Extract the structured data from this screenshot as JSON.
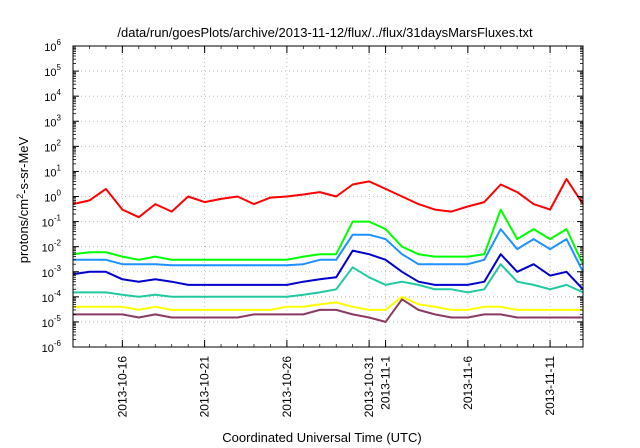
{
  "chart_data": {
    "type": "line",
    "title": "/data/run/goesPlots/archive/2013-11-12/flux/../flux/31daysMarsFluxes.txt",
    "xlabel": "Coordinated Universal Time (UTC)",
    "ylabel_base": "protons/cm",
    "ylabel_sup": "2",
    "ylabel_rest": "-s-sr-MeV",
    "yscale": "log",
    "ylim": [
      1e-06,
      1000000.0
    ],
    "y_ticks": [
      {
        "base": "10",
        "exp": "-6",
        "value": 1e-06
      },
      {
        "base": "10",
        "exp": "-5",
        "value": 1e-05
      },
      {
        "base": "10",
        "exp": "-4",
        "value": 0.0001
      },
      {
        "base": "10",
        "exp": "-3",
        "value": 0.001
      },
      {
        "base": "10",
        "exp": "-2",
        "value": 0.01
      },
      {
        "base": "10",
        "exp": "-1",
        "value": 0.1
      },
      {
        "base": "10",
        "exp": "0",
        "value": 1
      },
      {
        "base": "10",
        "exp": "1",
        "value": 10
      },
      {
        "base": "10",
        "exp": "2",
        "value": 100
      },
      {
        "base": "10",
        "exp": "3",
        "value": 1000
      },
      {
        "base": "10",
        "exp": "4",
        "value": 10000
      },
      {
        "base": "10",
        "exp": "5",
        "value": 100000
      },
      {
        "base": "10",
        "exp": "6",
        "value": 1000000
      }
    ],
    "xlim": [
      "2013-10-13",
      "2013-11-13"
    ],
    "x_ticks": [
      {
        "label": "2013-10-16",
        "date": "2013-10-16"
      },
      {
        "label": "2013-10-21",
        "date": "2013-10-21"
      },
      {
        "label": "2013-10-26",
        "date": "2013-10-26"
      },
      {
        "label": "2013-10-31",
        "date": "2013-10-31"
      },
      {
        "label": "2013-11-1",
        "date": "2013-11-01"
      },
      {
        "label": "2013-11-6",
        "date": "2013-11-06"
      },
      {
        "label": "2013-11-11",
        "date": "2013-11-11"
      }
    ],
    "grid": true,
    "legend": "none",
    "series": [
      {
        "color": "#ff0000",
        "x": [
          "2013-10-13",
          "2013-10-14",
          "2013-10-15",
          "2013-10-16",
          "2013-10-17",
          "2013-10-18",
          "2013-10-19",
          "2013-10-20",
          "2013-10-21",
          "2013-10-22",
          "2013-10-23",
          "2013-10-24",
          "2013-10-25",
          "2013-10-26",
          "2013-10-27",
          "2013-10-28",
          "2013-10-29",
          "2013-10-30",
          "2013-10-31",
          "2013-11-01",
          "2013-11-02",
          "2013-11-03",
          "2013-11-04",
          "2013-11-05",
          "2013-11-06",
          "2013-11-07",
          "2013-11-08",
          "2013-11-09",
          "2013-11-10",
          "2013-11-11",
          "2013-11-12",
          "2013-11-13"
        ],
        "y": [
          0.5,
          0.7,
          2,
          0.3,
          0.15,
          0.5,
          0.25,
          1,
          0.6,
          0.8,
          1,
          0.5,
          0.9,
          1,
          1.2,
          1.5,
          1,
          3,
          4,
          2,
          1,
          0.5,
          0.3,
          0.25,
          0.4,
          0.6,
          3,
          1.5,
          0.5,
          0.3,
          5,
          0.5
        ]
      },
      {
        "color": "#00ff00",
        "x": [
          "2013-10-13",
          "2013-10-14",
          "2013-10-15",
          "2013-10-16",
          "2013-10-17",
          "2013-10-18",
          "2013-10-19",
          "2013-10-20",
          "2013-10-21",
          "2013-10-22",
          "2013-10-23",
          "2013-10-24",
          "2013-10-25",
          "2013-10-26",
          "2013-10-27",
          "2013-10-28",
          "2013-10-29",
          "2013-10-30",
          "2013-10-31",
          "2013-11-01",
          "2013-11-02",
          "2013-11-03",
          "2013-11-04",
          "2013-11-05",
          "2013-11-06",
          "2013-11-07",
          "2013-11-08",
          "2013-11-09",
          "2013-11-10",
          "2013-11-11",
          "2013-11-12",
          "2013-11-13"
        ],
        "y": [
          0.005,
          0.006,
          0.006,
          0.004,
          0.003,
          0.004,
          0.003,
          0.003,
          0.003,
          0.003,
          0.003,
          0.003,
          0.003,
          0.003,
          0.004,
          0.005,
          0.005,
          0.1,
          0.1,
          0.05,
          0.01,
          0.005,
          0.004,
          0.004,
          0.004,
          0.005,
          0.3,
          0.02,
          0.05,
          0.02,
          0.05,
          0.002
        ]
      },
      {
        "color": "#1e90ff",
        "x": [
          "2013-10-13",
          "2013-10-14",
          "2013-10-15",
          "2013-10-16",
          "2013-10-17",
          "2013-10-18",
          "2013-10-19",
          "2013-10-20",
          "2013-10-21",
          "2013-10-22",
          "2013-10-23",
          "2013-10-24",
          "2013-10-25",
          "2013-10-26",
          "2013-10-27",
          "2013-10-28",
          "2013-10-29",
          "2013-10-30",
          "2013-10-31",
          "2013-11-01",
          "2013-11-02",
          "2013-11-03",
          "2013-11-04",
          "2013-11-05",
          "2013-11-06",
          "2013-11-07",
          "2013-11-08",
          "2013-11-09",
          "2013-11-10",
          "2013-11-11",
          "2013-11-12",
          "2013-11-13"
        ],
        "y": [
          0.003,
          0.003,
          0.003,
          0.002,
          0.002,
          0.002,
          0.0018,
          0.0018,
          0.0018,
          0.0018,
          0.0018,
          0.0018,
          0.0018,
          0.0018,
          0.002,
          0.003,
          0.003,
          0.03,
          0.03,
          0.02,
          0.005,
          0.002,
          0.002,
          0.002,
          0.002,
          0.003,
          0.05,
          0.008,
          0.02,
          0.008,
          0.02,
          0.001
        ]
      },
      {
        "color": "#0000cd",
        "x": [
          "2013-10-13",
          "2013-10-14",
          "2013-10-15",
          "2013-10-16",
          "2013-10-17",
          "2013-10-18",
          "2013-10-19",
          "2013-10-20",
          "2013-10-21",
          "2013-10-22",
          "2013-10-23",
          "2013-10-24",
          "2013-10-25",
          "2013-10-26",
          "2013-10-27",
          "2013-10-28",
          "2013-10-29",
          "2013-10-30",
          "2013-10-31",
          "2013-11-01",
          "2013-11-02",
          "2013-11-03",
          "2013-11-04",
          "2013-11-05",
          "2013-11-06",
          "2013-11-07",
          "2013-11-08",
          "2013-11-09",
          "2013-11-10",
          "2013-11-11",
          "2013-11-12",
          "2013-11-13"
        ],
        "y": [
          0.0008,
          0.001,
          0.001,
          0.0005,
          0.0004,
          0.0005,
          0.0004,
          0.0003,
          0.0003,
          0.0003,
          0.0003,
          0.0003,
          0.0003,
          0.0003,
          0.0004,
          0.0005,
          0.0006,
          0.007,
          0.005,
          0.003,
          0.001,
          0.0004,
          0.0003,
          0.0003,
          0.0003,
          0.0004,
          0.005,
          0.001,
          0.002,
          0.0007,
          0.001,
          0.0002
        ]
      },
      {
        "color": "#20c9a0",
        "x": [
          "2013-10-13",
          "2013-10-14",
          "2013-10-15",
          "2013-10-16",
          "2013-10-17",
          "2013-10-18",
          "2013-10-19",
          "2013-10-20",
          "2013-10-21",
          "2013-10-22",
          "2013-10-23",
          "2013-10-24",
          "2013-10-25",
          "2013-10-26",
          "2013-10-27",
          "2013-10-28",
          "2013-10-29",
          "2013-10-30",
          "2013-10-31",
          "2013-11-01",
          "2013-11-02",
          "2013-11-03",
          "2013-11-04",
          "2013-11-05",
          "2013-11-06",
          "2013-11-07",
          "2013-11-08",
          "2013-11-09",
          "2013-11-10",
          "2013-11-11",
          "2013-11-12",
          "2013-11-13"
        ],
        "y": [
          0.00015,
          0.00015,
          0.00015,
          0.00012,
          0.0001,
          0.00012,
          0.0001,
          0.0001,
          0.0001,
          0.0001,
          0.0001,
          0.0001,
          0.0001,
          0.0001,
          0.00012,
          0.00015,
          0.0002,
          0.0015,
          0.0006,
          0.0003,
          0.0004,
          0.0003,
          0.0002,
          0.0002,
          0.00015,
          0.0002,
          0.002,
          0.0004,
          0.0003,
          0.0002,
          0.0003,
          0.00015
        ]
      },
      {
        "color": "#ffff00",
        "x": [
          "2013-10-13",
          "2013-10-14",
          "2013-10-15",
          "2013-10-16",
          "2013-10-17",
          "2013-10-18",
          "2013-10-19",
          "2013-10-20",
          "2013-10-21",
          "2013-10-22",
          "2013-10-23",
          "2013-10-24",
          "2013-10-25",
          "2013-10-26",
          "2013-10-27",
          "2013-10-28",
          "2013-10-29",
          "2013-10-30",
          "2013-10-31",
          "2013-11-01",
          "2013-11-02",
          "2013-11-03",
          "2013-11-04",
          "2013-11-05",
          "2013-11-06",
          "2013-11-07",
          "2013-11-08",
          "2013-11-09",
          "2013-11-10",
          "2013-11-11",
          "2013-11-12",
          "2013-11-13"
        ],
        "y": [
          4e-05,
          4e-05,
          4e-05,
          4e-05,
          3e-05,
          4e-05,
          3e-05,
          3e-05,
          3e-05,
          3e-05,
          3e-05,
          3e-05,
          3e-05,
          4e-05,
          4e-05,
          5e-05,
          6e-05,
          4e-05,
          3e-05,
          3e-05,
          0.0001,
          5e-05,
          4e-05,
          3e-05,
          3e-05,
          4e-05,
          4e-05,
          3e-05,
          3e-05,
          3e-05,
          3e-05,
          3e-05
        ]
      },
      {
        "color": "#8b3a62",
        "x": [
          "2013-10-13",
          "2013-10-14",
          "2013-10-15",
          "2013-10-16",
          "2013-10-17",
          "2013-10-18",
          "2013-10-19",
          "2013-10-20",
          "2013-10-21",
          "2013-10-22",
          "2013-10-23",
          "2013-10-24",
          "2013-10-25",
          "2013-10-26",
          "2013-10-27",
          "2013-10-28",
          "2013-10-29",
          "2013-10-30",
          "2013-10-31",
          "2013-11-01",
          "2013-11-02",
          "2013-11-03",
          "2013-11-04",
          "2013-11-05",
          "2013-11-06",
          "2013-11-07",
          "2013-11-08",
          "2013-11-09",
          "2013-11-10",
          "2013-11-11",
          "2013-11-12",
          "2013-11-13"
        ],
        "y": [
          2e-05,
          2e-05,
          2e-05,
          2e-05,
          1.5e-05,
          2e-05,
          1.5e-05,
          1.5e-05,
          1.5e-05,
          1.5e-05,
          1.5e-05,
          2e-05,
          2e-05,
          2e-05,
          2e-05,
          3e-05,
          3e-05,
          2e-05,
          1.5e-05,
          1e-05,
          8e-05,
          3e-05,
          2e-05,
          1.5e-05,
          1.5e-05,
          2e-05,
          2e-05,
          1.5e-05,
          1.5e-05,
          1.5e-05,
          1.5e-05,
          1.5e-05
        ]
      }
    ]
  }
}
